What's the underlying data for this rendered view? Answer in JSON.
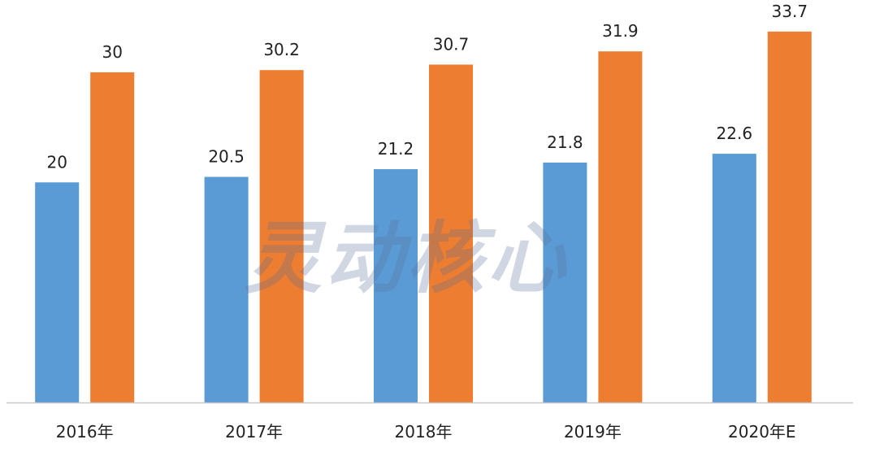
{
  "colors": {
    "series_a": "#5B9BD5",
    "series_b": "#ED7D31",
    "axis": "#C8C8C8",
    "text": "#222222"
  },
  "watermark": "灵动核心",
  "chart_data": {
    "type": "bar",
    "title": "",
    "xlabel": "",
    "ylabel": "",
    "categories": [
      "2016年",
      "2017年",
      "2018年",
      "2019年",
      "2020年E"
    ],
    "series": [
      {
        "values": [
          20,
          20.5,
          21.2,
          21.8,
          22.6
        ]
      },
      {
        "values": [
          30,
          30.2,
          30.7,
          31.9,
          33.7
        ]
      }
    ],
    "ylim": [
      0,
      34.5
    ],
    "grid": false,
    "legend": "none",
    "data_labels": true
  }
}
